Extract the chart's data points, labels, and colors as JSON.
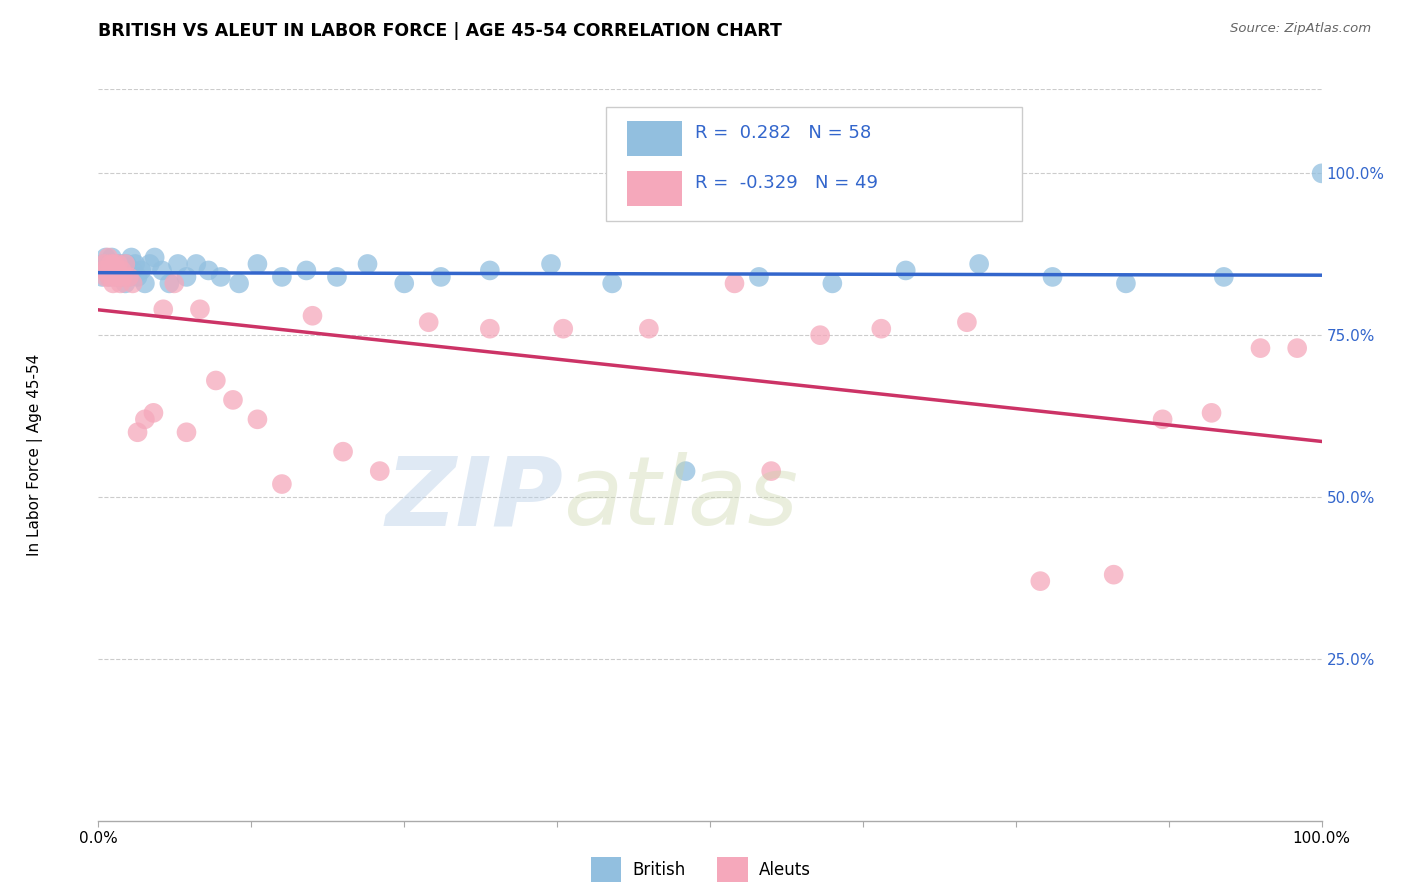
{
  "title": "BRITISH VS ALEUT IN LABOR FORCE | AGE 45-54 CORRELATION CHART",
  "source": "Source: ZipAtlas.com",
  "ylabel": "In Labor Force | Age 45-54",
  "xlim": [
    0,
    1
  ],
  "ylim": [
    0,
    1.13
  ],
  "yticks": [
    0.25,
    0.5,
    0.75,
    1.0
  ],
  "ytick_labels": [
    "25.0%",
    "50.0%",
    "75.0%",
    "100.0%"
  ],
  "xtick_positions": [
    0.0,
    0.125,
    0.25,
    0.375,
    0.5,
    0.625,
    0.75,
    0.875,
    1.0
  ],
  "xtick_labels": [
    "0.0%",
    "",
    "",
    "",
    "",
    "",
    "",
    "",
    "100.0%"
  ],
  "legend_british_r": "0.282",
  "legend_british_n": "58",
  "legend_aleuts_r": "-0.329",
  "legend_aleuts_n": "49",
  "british_color": "#92bfdf",
  "aleuts_color": "#f5a8bb",
  "trend_blue": "#3366cc",
  "trend_pink": "#cc3366",
  "label_color": "#3366cc",
  "british_x": [
    0.003,
    0.004,
    0.005,
    0.006,
    0.007,
    0.008,
    0.009,
    0.01,
    0.011,
    0.012,
    0.013,
    0.014,
    0.015,
    0.016,
    0.017,
    0.018,
    0.019,
    0.02,
    0.021,
    0.022,
    0.023,
    0.024,
    0.025,
    0.027,
    0.028,
    0.03,
    0.032,
    0.035,
    0.038,
    0.042,
    0.046,
    0.052,
    0.058,
    0.065,
    0.072,
    0.08,
    0.09,
    0.1,
    0.115,
    0.13,
    0.15,
    0.17,
    0.195,
    0.22,
    0.25,
    0.28,
    0.32,
    0.37,
    0.42,
    0.48,
    0.54,
    0.6,
    0.66,
    0.72,
    0.78,
    0.84,
    0.92,
    1.0
  ],
  "british_y": [
    0.84,
    0.86,
    0.85,
    0.87,
    0.86,
    0.85,
    0.84,
    0.86,
    0.87,
    0.85,
    0.86,
    0.84,
    0.85,
    0.86,
    0.84,
    0.85,
    0.86,
    0.84,
    0.85,
    0.83,
    0.86,
    0.85,
    0.84,
    0.87,
    0.85,
    0.86,
    0.84,
    0.85,
    0.83,
    0.86,
    0.87,
    0.85,
    0.83,
    0.86,
    0.84,
    0.86,
    0.85,
    0.84,
    0.83,
    0.86,
    0.84,
    0.85,
    0.84,
    0.86,
    0.83,
    0.84,
    0.85,
    0.86,
    0.83,
    0.54,
    0.84,
    0.83,
    0.85,
    0.86,
    0.84,
    0.83,
    0.84,
    1.0
  ],
  "aleuts_x": [
    0.004,
    0.005,
    0.006,
    0.007,
    0.008,
    0.009,
    0.01,
    0.011,
    0.012,
    0.013,
    0.014,
    0.015,
    0.016,
    0.017,
    0.018,
    0.019,
    0.02,
    0.022,
    0.025,
    0.028,
    0.032,
    0.038,
    0.045,
    0.053,
    0.062,
    0.072,
    0.083,
    0.096,
    0.11,
    0.13,
    0.15,
    0.175,
    0.2,
    0.23,
    0.27,
    0.32,
    0.38,
    0.45,
    0.52,
    0.59,
    0.64,
    0.71,
    0.77,
    0.83,
    0.87,
    0.91,
    0.95,
    0.98,
    0.55
  ],
  "aleuts_y": [
    0.85,
    0.86,
    0.84,
    0.85,
    0.87,
    0.84,
    0.86,
    0.85,
    0.83,
    0.86,
    0.84,
    0.85,
    0.86,
    0.84,
    0.83,
    0.85,
    0.84,
    0.86,
    0.84,
    0.83,
    0.6,
    0.62,
    0.63,
    0.79,
    0.83,
    0.6,
    0.79,
    0.68,
    0.65,
    0.62,
    0.52,
    0.78,
    0.57,
    0.54,
    0.77,
    0.76,
    0.76,
    0.76,
    0.83,
    0.75,
    0.76,
    0.77,
    0.37,
    0.38,
    0.62,
    0.63,
    0.73,
    0.73,
    0.54
  ]
}
